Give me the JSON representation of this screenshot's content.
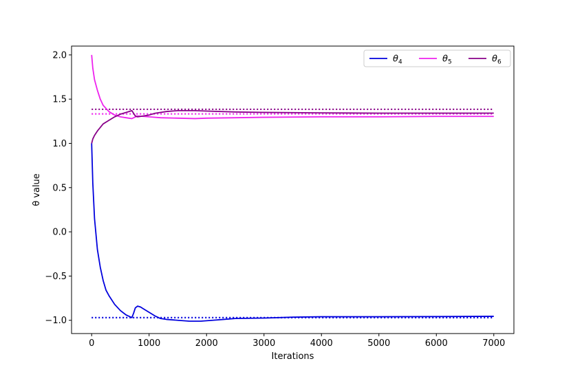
{
  "chart_data": {
    "type": "line",
    "xlabel": "Iterations",
    "ylabel": "θ value",
    "xlim": [
      -350,
      7350
    ],
    "ylim": [
      -1.15,
      2.1
    ],
    "x_ticks": [
      0,
      1000,
      2000,
      3000,
      4000,
      5000,
      6000,
      7000
    ],
    "x_tick_labels": [
      "0",
      "1000",
      "2000",
      "3000",
      "4000",
      "5000",
      "6000",
      "7000"
    ],
    "y_ticks": [
      -1.0,
      -0.5,
      0.0,
      0.5,
      1.0,
      1.5,
      2.0
    ],
    "y_tick_labels": [
      "−1.0",
      "−0.5",
      "0.0",
      "0.5",
      "1.0",
      "1.5",
      "2.0"
    ],
    "grid": false,
    "legend_position": "top-right",
    "series": [
      {
        "name": "θ",
        "subscript": "4",
        "color": "#0000dd",
        "x": [
          0,
          20,
          50,
          100,
          150,
          200,
          250,
          300,
          400,
          500,
          600,
          700,
          730,
          760,
          800,
          850,
          900,
          1000,
          1100,
          1200,
          1300,
          1500,
          1700,
          1900,
          2100,
          2300,
          2500,
          3000,
          3500,
          4000,
          5000,
          6000,
          7000
        ],
        "y": [
          1.0,
          0.55,
          0.15,
          -0.2,
          -0.4,
          -0.55,
          -0.66,
          -0.72,
          -0.82,
          -0.89,
          -0.94,
          -0.97,
          -0.92,
          -0.86,
          -0.84,
          -0.85,
          -0.87,
          -0.91,
          -0.95,
          -0.98,
          -0.99,
          -1.0,
          -1.01,
          -1.01,
          -1.0,
          -0.99,
          -0.98,
          -0.975,
          -0.965,
          -0.96,
          -0.96,
          -0.958,
          -0.955
        ]
      },
      {
        "name": "θ",
        "subscript": "5",
        "color": "#ee22ee",
        "x": [
          0,
          20,
          50,
          100,
          150,
          200,
          300,
          400,
          500,
          600,
          700,
          800,
          1000,
          1200,
          1500,
          1800,
          2000,
          2500,
          3000,
          4000,
          5000,
          6000,
          7000
        ],
        "y": [
          2.0,
          1.85,
          1.72,
          1.6,
          1.5,
          1.43,
          1.36,
          1.32,
          1.3,
          1.29,
          1.28,
          1.31,
          1.3,
          1.29,
          1.285,
          1.28,
          1.285,
          1.29,
          1.295,
          1.3,
          1.3,
          1.305,
          1.305
        ]
      },
      {
        "name": "θ",
        "subscript": "6",
        "color": "#880088",
        "x": [
          0,
          20,
          50,
          100,
          150,
          200,
          300,
          400,
          500,
          600,
          700,
          730,
          760,
          800,
          900,
          1000,
          1100,
          1300,
          1500,
          1800,
          2000,
          2500,
          3000,
          4000,
          5000,
          6000,
          7000
        ],
        "y": [
          1.0,
          1.05,
          1.09,
          1.14,
          1.18,
          1.22,
          1.26,
          1.3,
          1.33,
          1.35,
          1.37,
          1.34,
          1.31,
          1.3,
          1.31,
          1.32,
          1.34,
          1.36,
          1.37,
          1.37,
          1.365,
          1.355,
          1.35,
          1.345,
          1.342,
          1.342,
          1.342
        ]
      }
    ],
    "reference_lines": [
      {
        "y": -0.97,
        "color": "#0000dd",
        "style": "dotted"
      },
      {
        "y": 1.333,
        "color": "#ee22ee",
        "style": "dotted"
      },
      {
        "y": 1.385,
        "color": "#880088",
        "style": "dotted"
      }
    ],
    "reference_x_range": [
      0,
      7000
    ]
  }
}
